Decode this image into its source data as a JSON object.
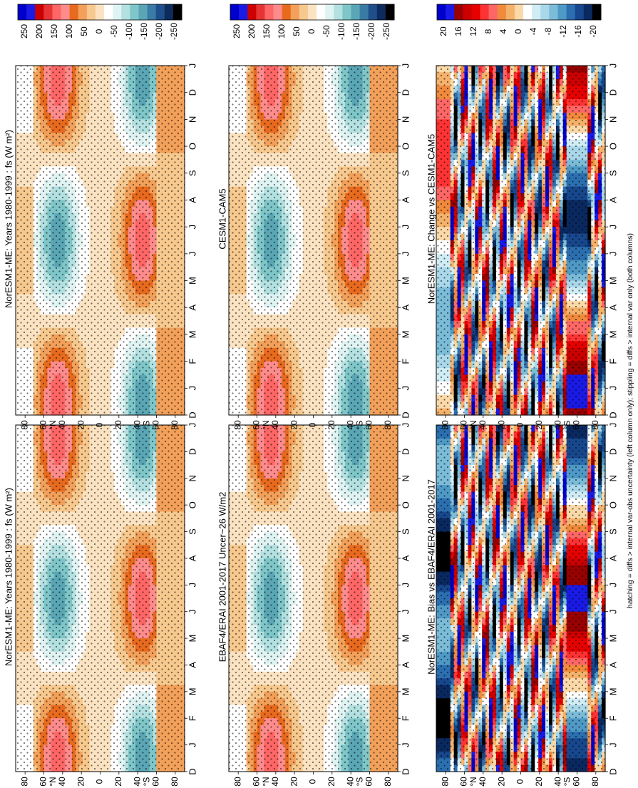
{
  "figure": {
    "footnote": "hatching = diffs > internal var-obs uncertainty (left column only); stippling = diffs > internal var only (both columns)"
  },
  "chart_data": [
    {
      "id": "p1",
      "type": "heatmap",
      "title": "NorESM1-ME: Years 1980-1999 : fs (W m²)",
      "x_categories": [
        "D",
        "J",
        "F",
        "M",
        "A",
        "M",
        "J",
        "J",
        "A",
        "S",
        "O",
        "N",
        "D",
        "J"
      ],
      "y_ticks": [
        "80",
        "60",
        "40",
        "20",
        "0",
        "20",
        "40",
        "60",
        "80"
      ],
      "y_hemi_labels": [
        "°N",
        "°S"
      ],
      "colorbar_ticks": [
        "250",
        "200",
        "150",
        "100",
        "50",
        "0",
        "-50",
        "-100",
        "-150",
        "-200",
        "-250"
      ],
      "palette": "shortwave",
      "ylim": [
        -90,
        90
      ],
      "xlim": [
        0,
        13
      ],
      "field": [
        {
          "month": 1,
          "lat": 40,
          "value": 120
        },
        {
          "month": 1,
          "lat": 20,
          "value": 60
        },
        {
          "month": 1,
          "lat": -40,
          "value": -70
        },
        {
          "month": 1,
          "lat": -75,
          "value": 30
        },
        {
          "month": 6.5,
          "lat": -40,
          "value": 150
        },
        {
          "month": 6.5,
          "lat": 60,
          "value": -10
        },
        {
          "month": 12,
          "lat": 40,
          "value": 120
        },
        {
          "month": 12,
          "lat": -40,
          "value": -70
        }
      ]
    },
    {
      "id": "p2",
      "type": "heatmap",
      "title": "NorESM1-ME: Years 1980-1999 : fs (W m²)",
      "x_categories": [
        "D",
        "J",
        "F",
        "M",
        "A",
        "M",
        "J",
        "J",
        "A",
        "S",
        "O",
        "N",
        "D",
        "J"
      ],
      "y_ticks": [
        "80",
        "60",
        "40",
        "20",
        "0",
        "20",
        "40",
        "60",
        "80"
      ],
      "y_hemi_labels": [
        "°N",
        "°S"
      ],
      "colorbar_ticks": [
        "250",
        "200",
        "150",
        "100",
        "50",
        "0",
        "-50",
        "-100",
        "-150",
        "-200",
        "-250"
      ],
      "palette": "shortwave",
      "ylim": [
        -90,
        90
      ],
      "xlim": [
        0,
        13
      ],
      "field": [
        {
          "month": 1,
          "lat": 40,
          "value": 120
        },
        {
          "month": 6.5,
          "lat": -40,
          "value": 150
        },
        {
          "month": 12,
          "lat": -40,
          "value": -70
        }
      ]
    },
    {
      "id": "p3",
      "type": "heatmap",
      "title": "EBAF4/ERAI 2001-2017 Uncer~26 W/m2",
      "x_categories": [
        "D",
        "J",
        "F",
        "M",
        "A",
        "M",
        "J",
        "J",
        "A",
        "S",
        "O",
        "N",
        "D",
        "J"
      ],
      "y_ticks": [
        "80",
        "60",
        "40",
        "20",
        "0",
        "20",
        "40",
        "60",
        "80"
      ],
      "y_hemi_labels": [
        "°N",
        "°S"
      ],
      "colorbar_ticks": [
        "250",
        "200",
        "150",
        "100",
        "50",
        "0",
        "-50",
        "-100",
        "-150",
        "-200",
        "-250"
      ],
      "palette": "shortwave",
      "ylim": [
        -90,
        90
      ],
      "xlim": [
        0,
        13
      ],
      "field": [
        {
          "month": 1,
          "lat": 40,
          "value": 125
        },
        {
          "month": 6.5,
          "lat": -40,
          "value": 145
        }
      ]
    },
    {
      "id": "p4",
      "type": "heatmap",
      "title": "CESM1-CAM5",
      "x_categories": [
        "D",
        "J",
        "F",
        "M",
        "A",
        "M",
        "J",
        "J",
        "A",
        "S",
        "O",
        "N",
        "D",
        "J"
      ],
      "y_ticks": [
        "80",
        "60",
        "40",
        "20",
        "0",
        "20",
        "40",
        "60",
        "80"
      ],
      "y_hemi_labels": [
        "°N",
        "°S"
      ],
      "colorbar_ticks": [
        "250",
        "200",
        "150",
        "100",
        "50",
        "0",
        "-50",
        "-100",
        "-150",
        "-200",
        "-250"
      ],
      "palette": "shortwave",
      "ylim": [
        -90,
        90
      ],
      "xlim": [
        0,
        13
      ],
      "field": [
        {
          "month": 1,
          "lat": 40,
          "value": 125
        },
        {
          "month": 6.5,
          "lat": -40,
          "value": 150
        }
      ]
    },
    {
      "id": "p5",
      "type": "heatmap",
      "title": "NorESM1-ME: Bias vs EBAF4/ERAI 2001-2017",
      "x_categories": [
        "D",
        "J",
        "F",
        "M",
        "A",
        "M",
        "J",
        "J",
        "A",
        "S",
        "O",
        "N",
        "D",
        "J"
      ],
      "y_ticks": [
        "80",
        "60",
        "40",
        "20",
        "0",
        "20",
        "40",
        "60",
        "80"
      ],
      "y_hemi_labels": [
        "°N",
        "°S"
      ],
      "colorbar_ticks": [
        "20",
        "16",
        "12",
        "8",
        "4",
        "0",
        "-4",
        "-8",
        "-12",
        "-16",
        "-20"
      ],
      "palette": "difference",
      "ylim": [
        -90,
        90
      ],
      "xlim": [
        0,
        13
      ],
      "field": [
        {
          "month": 1,
          "lat": 80,
          "value": -20
        },
        {
          "month": 6.5,
          "lat": -60,
          "value": -20
        },
        {
          "month": 3,
          "lat": -60,
          "value": 16
        }
      ]
    },
    {
      "id": "p6",
      "type": "heatmap",
      "title": "NorESM1-ME: Change vs CESM1-CAM5",
      "x_categories": [
        "D",
        "J",
        "F",
        "M",
        "A",
        "M",
        "J",
        "J",
        "A",
        "S",
        "O",
        "N",
        "D",
        "J"
      ],
      "y_ticks": [
        "80",
        "60",
        "40",
        "20",
        "0",
        "20",
        "40",
        "60",
        "80"
      ],
      "y_hemi_labels": [
        "°N",
        "°S"
      ],
      "colorbar_ticks": [
        "20",
        "16",
        "12",
        "8",
        "4",
        "0",
        "-4",
        "-8",
        "-12",
        "-16",
        "-20"
      ],
      "palette": "difference",
      "ylim": [
        -90,
        90
      ],
      "xlim": [
        0,
        13
      ],
      "field": [
        {
          "month": 1,
          "lat": -60,
          "value": 20
        },
        {
          "month": 7.5,
          "lat": 85,
          "value": 20
        },
        {
          "month": 7,
          "lat": -60,
          "value": -20
        }
      ]
    }
  ],
  "palettes": {
    "shortwave": [
      "#0000cc",
      "#1a1ae6",
      "#cc0000",
      "#e63333",
      "#ff6666",
      "#ff8c8c",
      "#e86a1e",
      "#f2a05a",
      "#f7c98e",
      "#fbe3c2",
      "#ffffff",
      "#e0f3f3",
      "#b3e0e0",
      "#7fc6c9",
      "#5aa6b5",
      "#3a7ba6",
      "#1f4f8a",
      "#0d2b5c",
      "#000000"
    ],
    "difference": [
      "#0000cc",
      "#1a1ae6",
      "#990000",
      "#cc0000",
      "#e60000",
      "#ff3333",
      "#ff6666",
      "#f08a3c",
      "#f5b26b",
      "#fbd9a8",
      "#ffffff",
      "#d0ecf5",
      "#a9d8ea",
      "#7bbcd9",
      "#4f99c7",
      "#2b6fb0",
      "#17478c",
      "#0a2960",
      "#000000"
    ]
  }
}
